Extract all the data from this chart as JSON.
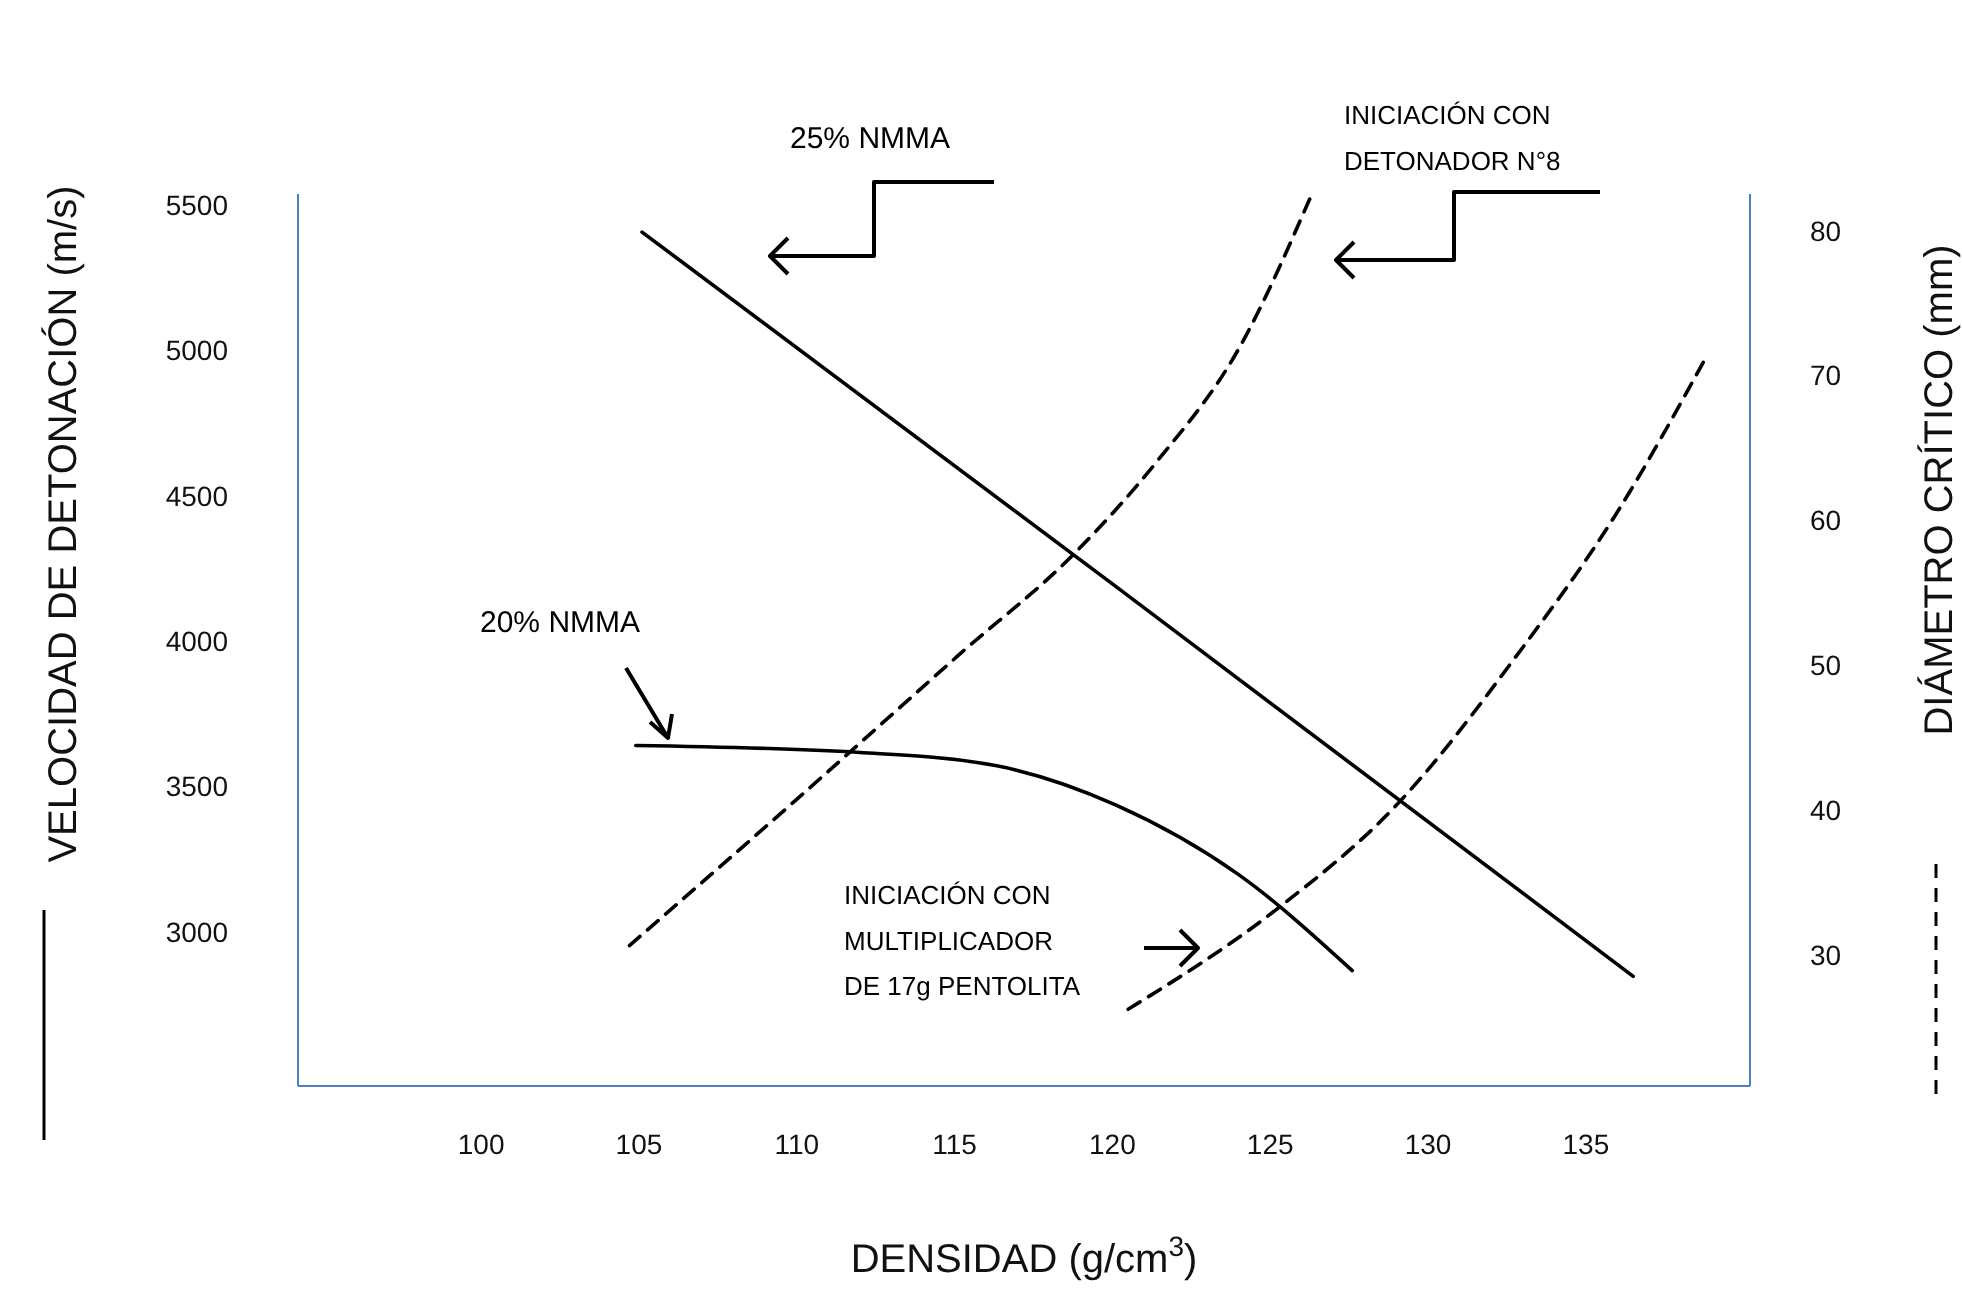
{
  "chart_data": {
    "type": "line",
    "xlabel": "DENSIDAD (g/cm$^{3}$)",
    "ylabel": "VELOCIDAD DE DETONACIÓN (m/s)",
    "y2label": "DIÁMETRO CRÍTICO (mm)",
    "xlim": [
      94.2,
      140.2
    ],
    "xticks": [
      100,
      105,
      110,
      115,
      120,
      125,
      130,
      135
    ],
    "ylim": [
      2473,
      5541
    ],
    "yticks": [
      3000,
      3500,
      4000,
      4500,
      5000,
      5500
    ],
    "y2lim": [
      21,
      82.6
    ],
    "y2ticks": [
      30,
      40,
      50,
      60,
      70,
      80
    ],
    "grid": false,
    "legend": false,
    "marker": "none",
    "series": [
      {
        "name": "25% NMMA",
        "color": "#000000",
        "line_style": "solid",
        "x": [
          105.1,
          120,
          136.5
        ],
        "values": [
          5410,
          4200,
          2850
        ]
      },
      {
        "name": "20% NMMA",
        "color": "#000000",
        "line_style": "solid",
        "x": [
          104.9,
          112,
          116.3,
          120.1,
          124,
          127.6
        ],
        "values": [
          3644,
          3620,
          3575,
          3440,
          3200,
          2870
        ]
      },
      {
        "name": "INICIACIÓN CON DETONADOR N°8",
        "color": "#000000",
        "line_style": "dashed",
        "axis": "y2",
        "x": [
          104.7,
          110,
          115.1,
          118.9,
          121.4,
          124,
          126.3
        ],
        "values": [
          30.7,
          40.8,
          50.7,
          58,
          64.1,
          71.9,
          82.5
        ]
      },
      {
        "name": "INICIACIÓN CON MULTIPLICADOR DE 17g PENTOLITA",
        "color": "#000000",
        "line_style": "dashed",
        "axis": "y2",
        "x": [
          120.5,
          125.2,
          129,
          132.8,
          135.9,
          138.8
        ],
        "values": [
          26.3,
          33.2,
          40.4,
          50.7,
          60.3,
          71.3
        ]
      }
    ]
  }
}
